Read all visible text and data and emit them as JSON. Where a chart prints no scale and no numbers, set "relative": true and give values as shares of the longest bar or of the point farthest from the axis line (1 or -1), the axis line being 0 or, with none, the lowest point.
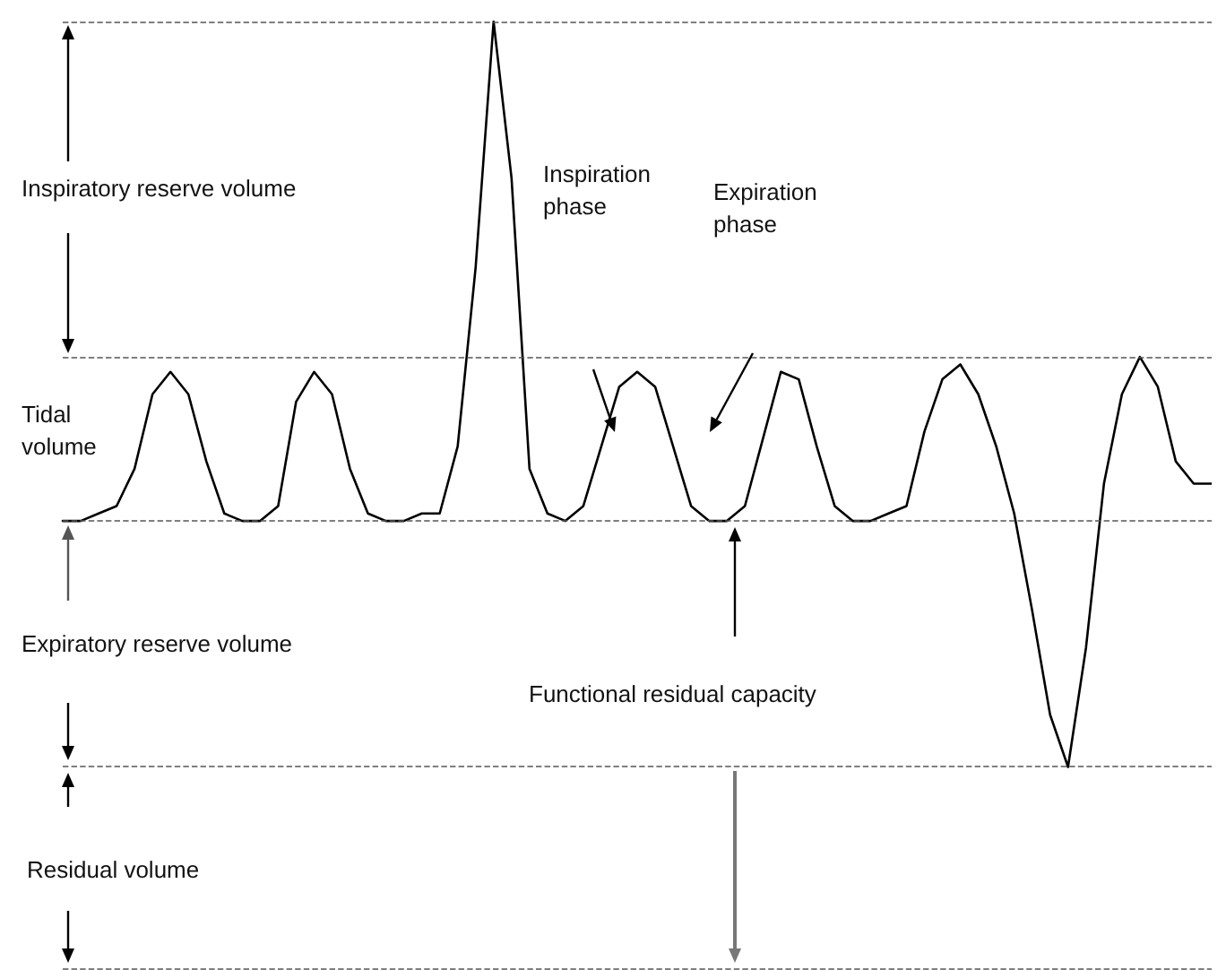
{
  "chart_data": {
    "type": "line",
    "relative": true,
    "marker": "none",
    "line_style": "solid",
    "categories": [
      null,
      null,
      null,
      null,
      null,
      null,
      null,
      null,
      null,
      null,
      null,
      null,
      null,
      null,
      null,
      null,
      null,
      null,
      null,
      null,
      null,
      null,
      null,
      null,
      null,
      null,
      null,
      null,
      null,
      null,
      null,
      null,
      null,
      null,
      null,
      null,
      null,
      null,
      null,
      null,
      null,
      null,
      null,
      null,
      null,
      null,
      null,
      null,
      null,
      null,
      null,
      null,
      null,
      null,
      null,
      null,
      null,
      null,
      null,
      null,
      null,
      null,
      null,
      null,
      null
    ],
    "series": [
      {
        "color": "#000000",
        "values": [
          0.33,
          0.33,
          0.34,
          0.35,
          0.4,
          0.5,
          0.53,
          0.5,
          0.41,
          0.34,
          0.33,
          0.33,
          0.35,
          0.49,
          0.53,
          0.5,
          0.4,
          0.34,
          0.33,
          0.33,
          0.34,
          0.34,
          0.43,
          0.67,
          1,
          0.79,
          0.4,
          0.34,
          0.33,
          0.35,
          0.43,
          0.51,
          0.53,
          0.51,
          0.43,
          0.35,
          0.33,
          0.33,
          0.35,
          0.44,
          0.53,
          0.52,
          0.43,
          0.35,
          0.33,
          0.33,
          0.34,
          0.35,
          0.45,
          0.52,
          0.54,
          0.5,
          0.43,
          0.34,
          0.21,
          0.07,
          0,
          0.16,
          0.38,
          0.5,
          0.55,
          0.51,
          0.41,
          0.38,
          0.38
        ]
      }
    ],
    "ref_lines": [
      {
        "axis": "y",
        "value": 1,
        "line_style": "dashed",
        "color": "#555555"
      },
      {
        "axis": "y",
        "value": 0.55,
        "line_style": "dashed",
        "color": "#555555"
      },
      {
        "axis": "y",
        "value": 0.33,
        "line_style": "dashed",
        "color": "#555555"
      },
      {
        "axis": "y",
        "value": 0,
        "line_style": "dashed",
        "color": "#555555"
      },
      {
        "axis": "y",
        "value": -0.27,
        "line_style": "dashed",
        "color": "#555555"
      }
    ],
    "annotations": [
      "Inspiratory reserve volume",
      "Inspiration phase",
      "Expiration phase",
      "Tidal volume",
      "Expiratory reserve volume",
      "Functional residual capacity",
      "Residual volume"
    ]
  }
}
